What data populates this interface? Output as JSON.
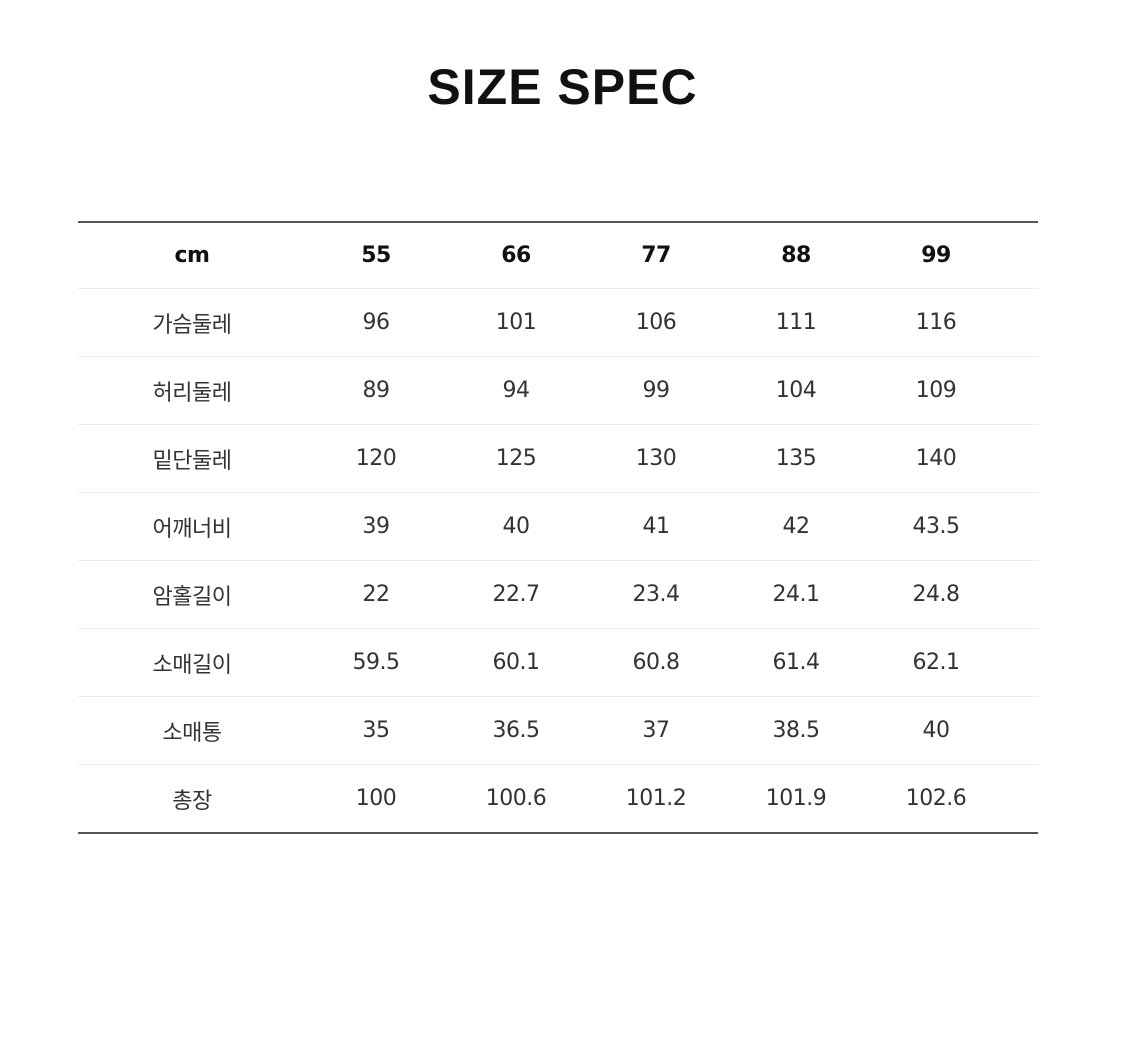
{
  "title": "SIZE SPEC",
  "table": {
    "header": [
      "cm",
      "55",
      "66",
      "77",
      "88",
      "99"
    ],
    "rows": [
      [
        "가슴둘레",
        "96",
        "101",
        "106",
        "111",
        "116"
      ],
      [
        "허리둘레",
        "89",
        "94",
        "99",
        "104",
        "109"
      ],
      [
        "밑단둘레",
        "120",
        "125",
        "130",
        "135",
        "140"
      ],
      [
        "어깨너비",
        "39",
        "40",
        "41",
        "42",
        "43.5"
      ],
      [
        "암홀길이",
        "22",
        "22.7",
        "23.4",
        "24.1",
        "24.8"
      ],
      [
        "소매길이",
        "59.5",
        "60.1",
        "60.8",
        "61.4",
        "62.1"
      ],
      [
        "소매통",
        "35",
        "36.5",
        "37",
        "38.5",
        "40"
      ],
      [
        "총장",
        "100",
        "100.6",
        "101.2",
        "101.9",
        "102.6"
      ]
    ]
  }
}
